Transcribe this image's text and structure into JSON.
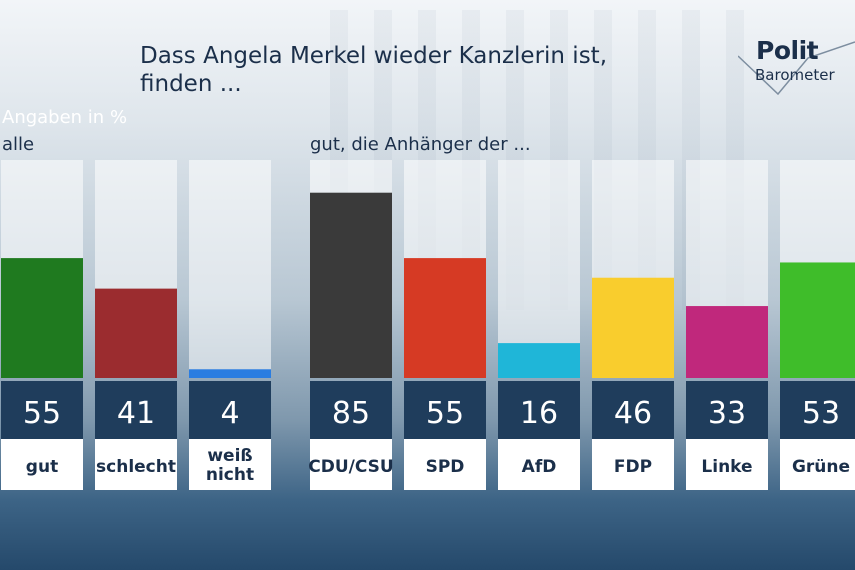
{
  "title": "Dass Angela Merkel wieder Kanzlerin ist, finden ...",
  "logo": {
    "top": "Polit",
    "bottom": "Barometer"
  },
  "subtitle": "Angaben in %",
  "chart_data": [
    {
      "type": "bar",
      "label": "alle",
      "categories": [
        "gut",
        "schlecht",
        "weiß nicht"
      ],
      "values": [
        55,
        41,
        4
      ],
      "colors": [
        "#1f7a1f",
        "#9b2c2f",
        "#2a7de1"
      ],
      "ylim": [
        0,
        100
      ]
    },
    {
      "type": "bar",
      "label": "gut, die Anhänger der ...",
      "categories": [
        "CDU/CSU",
        "SPD",
        "AfD",
        "FDP",
        "Linke",
        "Grüne"
      ],
      "values": [
        85,
        55,
        16,
        46,
        33,
        53
      ],
      "colors": [
        "#3a3a3a",
        "#d63a24",
        "#1fb6d8",
        "#f9cd2d",
        "#c0287c",
        "#3fbd2a"
      ],
      "ylim": [
        0,
        100
      ]
    }
  ]
}
